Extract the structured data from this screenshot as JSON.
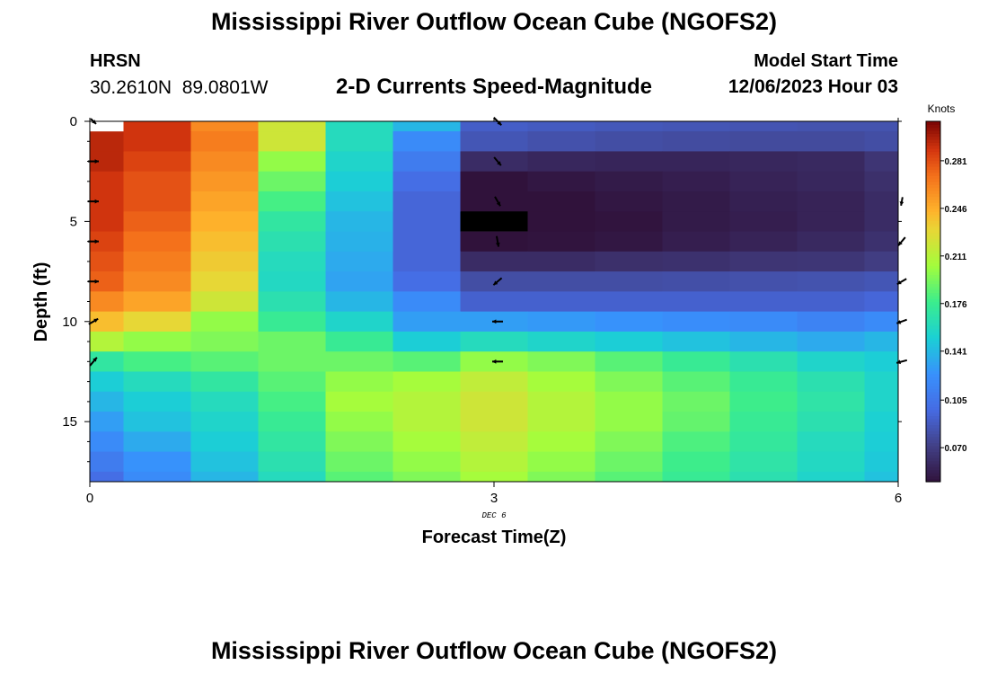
{
  "header": {
    "title": "Mississippi River Outflow Ocean Cube (NGOFS2)",
    "station": "HRSN",
    "coords": "30.2610N  89.0801W",
    "subtitle": "2-D Currents Speed-Magnitude",
    "model_start_label": "Model Start Time",
    "model_start_time": "12/06/2023 Hour 03"
  },
  "footer": {
    "title": "Mississippi River Outflow Ocean Cube (NGOFS2)"
  },
  "chart_data": {
    "type": "heatmap",
    "title": "2-D Currents Speed-Magnitude",
    "xlabel": "Forecast Time(Z)",
    "ylabel": "Depth (ft)",
    "x_date_label": "DEC 6",
    "xlim": [
      0,
      6
    ],
    "ylim": [
      18,
      0
    ],
    "x_ticks": [
      0,
      3,
      6
    ],
    "y_ticks": [
      0,
      5,
      10,
      15
    ],
    "colorbar": {
      "label": "Knots",
      "ticks": [
        0.07,
        0.105,
        0.141,
        0.176,
        0.211,
        0.246,
        0.281
      ],
      "tick_labels": [
        "0.070",
        "0.105",
        "0.141",
        "0.176",
        "0.211",
        "0.246",
        "0.281"
      ],
      "range": [
        0.045,
        0.31
      ]
    },
    "x_edges": [
      0,
      0.25,
      0.75,
      1.25,
      1.75,
      2.25,
      2.75,
      3.25,
      3.75,
      4.25,
      4.75,
      5.25,
      5.75,
      6
    ],
    "depth_edges": [
      0,
      0.5,
      1.5,
      2.5,
      3.5,
      4.5,
      5.5,
      6.5,
      7.5,
      8.5,
      9.5,
      10.5,
      11.5,
      12.5,
      13.5,
      14.5,
      15.5,
      16.5,
      17.5,
      18
    ],
    "speed_grid": [
      [
        null,
        0.29,
        0.26,
        0.22,
        0.16,
        0.14,
        0.09,
        0.088,
        0.086,
        0.085,
        0.084,
        0.083,
        0.083
      ],
      [
        0.295,
        0.29,
        0.265,
        0.22,
        0.16,
        0.12,
        0.085,
        0.082,
        0.08,
        0.079,
        0.078,
        0.078,
        0.08
      ],
      [
        0.295,
        0.285,
        0.26,
        0.2,
        0.155,
        0.11,
        0.06,
        0.057,
        0.056,
        0.056,
        0.057,
        0.058,
        0.065
      ],
      [
        0.29,
        0.28,
        0.255,
        0.19,
        0.15,
        0.1,
        0.045,
        0.048,
        0.05,
        0.052,
        0.055,
        0.057,
        0.062
      ],
      [
        0.29,
        0.28,
        0.25,
        0.18,
        0.145,
        0.095,
        0.04,
        0.045,
        0.048,
        0.05,
        0.053,
        0.055,
        0.06
      ],
      [
        0.29,
        0.275,
        0.245,
        0.17,
        0.14,
        0.095,
        null,
        0.042,
        0.046,
        0.05,
        0.052,
        0.055,
        0.06
      ],
      [
        0.285,
        0.27,
        0.24,
        0.165,
        0.138,
        0.095,
        0.045,
        0.046,
        0.048,
        0.052,
        0.055,
        0.058,
        0.063
      ],
      [
        0.28,
        0.265,
        0.235,
        0.16,
        0.135,
        0.095,
        0.06,
        0.06,
        0.062,
        0.063,
        0.065,
        0.066,
        0.07
      ],
      [
        0.275,
        0.26,
        0.23,
        0.158,
        0.132,
        0.1,
        0.08,
        0.08,
        0.08,
        0.081,
        0.082,
        0.083,
        0.085
      ],
      [
        0.26,
        0.25,
        0.22,
        0.165,
        0.14,
        0.12,
        0.092,
        0.092,
        0.092,
        0.092,
        0.092,
        0.092,
        0.095
      ],
      [
        0.24,
        0.23,
        0.2,
        0.175,
        0.155,
        0.13,
        0.13,
        0.128,
        0.125,
        0.122,
        0.12,
        0.115,
        0.12
      ],
      [
        0.21,
        0.2,
        0.195,
        0.19,
        0.175,
        0.15,
        0.16,
        0.155,
        0.15,
        0.145,
        0.14,
        0.135,
        0.14
      ],
      [
        0.17,
        0.18,
        0.185,
        0.19,
        0.19,
        0.185,
        0.2,
        0.195,
        0.185,
        0.175,
        0.165,
        0.155,
        0.15
      ],
      [
        0.15,
        0.16,
        0.17,
        0.185,
        0.2,
        0.205,
        0.215,
        0.205,
        0.195,
        0.185,
        0.175,
        0.165,
        0.155
      ],
      [
        0.14,
        0.15,
        0.16,
        0.18,
        0.205,
        0.21,
        0.22,
        0.21,
        0.2,
        0.19,
        0.178,
        0.168,
        0.155
      ],
      [
        0.13,
        0.145,
        0.155,
        0.175,
        0.2,
        0.21,
        0.22,
        0.21,
        0.2,
        0.188,
        0.175,
        0.165,
        0.152
      ],
      [
        0.12,
        0.135,
        0.15,
        0.17,
        0.195,
        0.205,
        0.215,
        0.205,
        0.195,
        0.182,
        0.172,
        0.16,
        0.15
      ],
      [
        0.11,
        0.125,
        0.145,
        0.165,
        0.19,
        0.2,
        0.21,
        0.2,
        0.19,
        0.178,
        0.168,
        0.158,
        0.148
      ],
      [
        0.1,
        0.12,
        0.14,
        0.16,
        0.185,
        0.195,
        0.205,
        0.195,
        0.185,
        0.175,
        0.165,
        0.155,
        0.145
      ]
    ],
    "blank_cells": [
      {
        "x": [
          0,
          0.25
        ],
        "depth": [
          0,
          0.5
        ],
        "color": "#ffffff"
      },
      {
        "x": [
          2.75,
          3.25
        ],
        "depth": [
          4.5,
          5.5
        ],
        "color": "#000000"
      }
    ],
    "vectors": [
      {
        "t": 0,
        "depth": 0,
        "dir_deg": -45,
        "size": 0.7
      },
      {
        "t": 0,
        "depth": 2,
        "dir_deg": 0,
        "size": 1
      },
      {
        "t": 0,
        "depth": 4,
        "dir_deg": 0,
        "size": 1
      },
      {
        "t": 0,
        "depth": 6,
        "dir_deg": 0,
        "size": 1
      },
      {
        "t": 0,
        "depth": 8,
        "dir_deg": 0,
        "size": 1
      },
      {
        "t": 0,
        "depth": 10,
        "dir_deg": 30,
        "size": 1
      },
      {
        "t": 0,
        "depth": 12,
        "dir_deg": 50,
        "size": 1
      },
      {
        "t": 3,
        "depth": 0,
        "dir_deg": -45,
        "size": 1
      },
      {
        "t": 3,
        "depth": 2,
        "dir_deg": -50,
        "size": 1
      },
      {
        "t": 3,
        "depth": 4,
        "dir_deg": -60,
        "size": 1
      },
      {
        "t": 3,
        "depth": 6,
        "dir_deg": -80,
        "size": 1
      },
      {
        "t": 3,
        "depth": 8,
        "dir_deg": -140,
        "size": 1
      },
      {
        "t": 3,
        "depth": 10,
        "dir_deg": 180,
        "size": 1
      },
      {
        "t": 3,
        "depth": 12,
        "dir_deg": 180,
        "size": 1
      },
      {
        "t": 6,
        "depth": 4,
        "dir_deg": -100,
        "size": 0.8
      },
      {
        "t": 6,
        "depth": 6,
        "dir_deg": -130,
        "size": 1
      },
      {
        "t": 6,
        "depth": 8,
        "dir_deg": -150,
        "size": 1
      },
      {
        "t": 6,
        "depth": 10,
        "dir_deg": -160,
        "size": 1
      },
      {
        "t": 6,
        "depth": 12,
        "dir_deg": -165,
        "size": 1
      }
    ]
  }
}
